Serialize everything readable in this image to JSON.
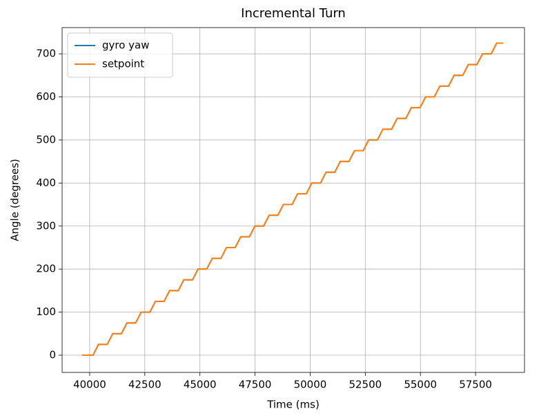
{
  "chart_data": {
    "type": "line",
    "title": "Incremental Turn",
    "x_label": "Time (ms)",
    "y_label": "Angle (degrees)",
    "x": [
      39650,
      40150,
      40400,
      40795,
      41045,
      41440,
      41690,
      42085,
      42335,
      42730,
      42980,
      43375,
      43625,
      44020,
      44270,
      44665,
      44915,
      45310,
      45560,
      45955,
      46205,
      46600,
      46850,
      47245,
      47495,
      47890,
      48140,
      48535,
      48785,
      49180,
      49430,
      49825,
      50075,
      50470,
      50720,
      51115,
      51365,
      51760,
      52010,
      52405,
      52655,
      53050,
      53300,
      53695,
      53945,
      54340,
      54590,
      54985,
      55235,
      55630,
      55880,
      56275,
      56525,
      56920,
      57170,
      57565,
      57815,
      58210,
      58460,
      58750
    ],
    "series": [
      {
        "name": "gyro yaw",
        "color": "#1f77b4",
        "values": [
          0,
          0,
          25,
          25,
          50,
          50,
          75,
          75,
          100,
          100,
          125,
          125,
          150,
          150,
          175,
          175,
          200,
          200,
          225,
          225,
          250,
          250,
          275,
          275,
          300,
          300,
          325,
          325,
          350,
          350,
          375,
          375,
          400,
          400,
          425,
          425,
          450,
          450,
          475,
          475,
          500,
          500,
          525,
          525,
          550,
          550,
          575,
          575,
          600,
          600,
          625,
          625,
          650,
          650,
          675,
          675,
          700,
          700,
          725,
          725
        ]
      },
      {
        "name": "setpoint",
        "color": "#ff7f0e",
        "values": [
          0,
          0,
          25,
          25,
          50,
          50,
          75,
          75,
          100,
          100,
          125,
          125,
          150,
          150,
          175,
          175,
          200,
          200,
          225,
          225,
          250,
          250,
          275,
          275,
          300,
          300,
          325,
          325,
          350,
          350,
          375,
          375,
          400,
          400,
          425,
          425,
          450,
          450,
          475,
          475,
          500,
          500,
          525,
          525,
          550,
          550,
          575,
          575,
          600,
          600,
          625,
          625,
          650,
          650,
          675,
          675,
          700,
          700,
          725,
          725
        ]
      }
    ],
    "xlim": [
      38750,
      59720
    ],
    "ylim": [
      -40,
      761
    ],
    "xticks": [
      40000,
      42500,
      45000,
      47500,
      50000,
      52500,
      55000,
      57500
    ],
    "yticks": [
      0,
      100,
      200,
      300,
      400,
      500,
      600,
      700
    ],
    "grid": true,
    "legend": "upper left"
  }
}
